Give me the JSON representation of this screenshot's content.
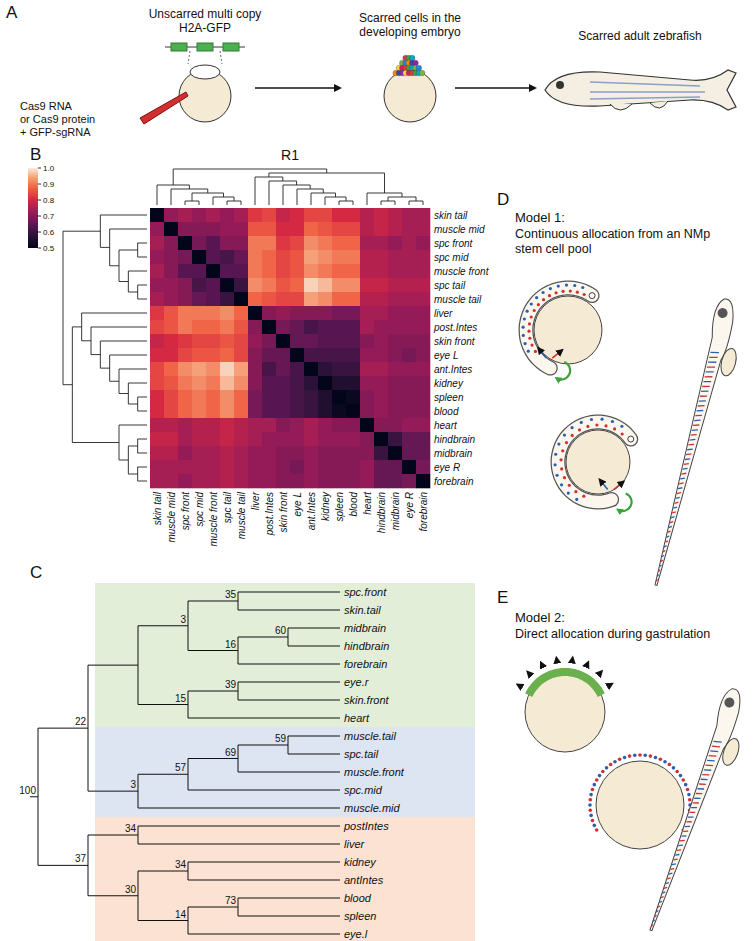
{
  "panel_labels": [
    "A",
    "B",
    "C",
    "D",
    "E"
  ],
  "panel_a": {
    "construct_label": [
      "Unscarred multi copy",
      "H2A-GFP"
    ],
    "injection_label": [
      "Cas9 RNA",
      "or Cas9 protein",
      "+ GFP-sgRNA"
    ],
    "embryo_label": [
      "Scarred cells in the",
      "developing embryo"
    ],
    "adult_label": "Scarred adult zebrafish"
  },
  "chart_data": {
    "type": "heatmap",
    "title": "R1",
    "rows": [
      "skin tail",
      "muscle mid",
      "spc front",
      "spc mid",
      "muscle front",
      "spc tail",
      "muscle tail",
      "liver",
      "post.Intes",
      "skin front",
      "eye L",
      "ant.Intes",
      "kidney",
      "spleen",
      "blood",
      "heart",
      "hindbrain",
      "midbrain",
      "eye R",
      "forebrain"
    ],
    "columns": [
      "skin tail",
      "muscle mid",
      "spc front",
      "spc mid",
      "muscle front",
      "spc tail",
      "muscle tail",
      "liver",
      "post.Intes",
      "skin front",
      "eye L",
      "ant.Intes",
      "kidney",
      "spleen",
      "blood",
      "heart",
      "hindbrain",
      "midbrain",
      "eye R",
      "forebrain"
    ],
    "values": [
      [
        0.5,
        0.72,
        0.74,
        0.72,
        0.74,
        0.72,
        0.74,
        0.82,
        0.84,
        0.78,
        0.8,
        0.84,
        0.84,
        0.8,
        0.8,
        0.76,
        0.78,
        0.76,
        0.74,
        0.74
      ],
      [
        0.72,
        0.5,
        0.7,
        0.7,
        0.7,
        0.72,
        0.72,
        0.86,
        0.86,
        0.8,
        0.8,
        0.88,
        0.86,
        0.84,
        0.84,
        0.76,
        0.78,
        0.76,
        0.74,
        0.74
      ],
      [
        0.74,
        0.7,
        0.5,
        0.68,
        0.64,
        0.7,
        0.7,
        0.9,
        0.9,
        0.82,
        0.84,
        0.92,
        0.9,
        0.88,
        0.88,
        0.74,
        0.74,
        0.72,
        0.74,
        0.72
      ],
      [
        0.72,
        0.7,
        0.68,
        0.5,
        0.64,
        0.62,
        0.66,
        0.9,
        0.88,
        0.84,
        0.86,
        0.94,
        0.92,
        0.9,
        0.9,
        0.76,
        0.76,
        0.74,
        0.74,
        0.74
      ],
      [
        0.74,
        0.7,
        0.64,
        0.64,
        0.5,
        0.64,
        0.64,
        0.9,
        0.88,
        0.84,
        0.86,
        0.92,
        0.9,
        0.88,
        0.88,
        0.76,
        0.76,
        0.74,
        0.74,
        0.74
      ],
      [
        0.72,
        0.72,
        0.7,
        0.62,
        0.64,
        0.5,
        0.6,
        0.92,
        0.9,
        0.86,
        0.88,
        0.98,
        0.96,
        0.92,
        0.92,
        0.78,
        0.78,
        0.76,
        0.76,
        0.76
      ],
      [
        0.74,
        0.72,
        0.7,
        0.66,
        0.64,
        0.6,
        0.5,
        0.88,
        0.86,
        0.84,
        0.84,
        0.94,
        0.92,
        0.88,
        0.88,
        0.76,
        0.76,
        0.74,
        0.74,
        0.74
      ],
      [
        0.82,
        0.86,
        0.9,
        0.9,
        0.9,
        0.92,
        0.88,
        0.5,
        0.7,
        0.72,
        0.7,
        0.7,
        0.7,
        0.68,
        0.68,
        0.74,
        0.74,
        0.72,
        0.72,
        0.72
      ],
      [
        0.84,
        0.86,
        0.9,
        0.88,
        0.88,
        0.9,
        0.86,
        0.7,
        0.5,
        0.68,
        0.66,
        0.62,
        0.64,
        0.64,
        0.64,
        0.74,
        0.72,
        0.72,
        0.72,
        0.72
      ],
      [
        0.78,
        0.8,
        0.82,
        0.84,
        0.84,
        0.86,
        0.84,
        0.72,
        0.68,
        0.5,
        0.66,
        0.66,
        0.64,
        0.64,
        0.64,
        0.7,
        0.72,
        0.7,
        0.7,
        0.7
      ],
      [
        0.8,
        0.8,
        0.84,
        0.86,
        0.86,
        0.88,
        0.84,
        0.7,
        0.66,
        0.66,
        0.5,
        0.62,
        0.62,
        0.62,
        0.62,
        0.72,
        0.72,
        0.7,
        0.68,
        0.7
      ],
      [
        0.84,
        0.88,
        0.92,
        0.94,
        0.92,
        0.98,
        0.94,
        0.7,
        0.62,
        0.66,
        0.62,
        0.5,
        0.58,
        0.6,
        0.6,
        0.74,
        0.74,
        0.72,
        0.72,
        0.72
      ],
      [
        0.84,
        0.86,
        0.9,
        0.92,
        0.9,
        0.96,
        0.92,
        0.7,
        0.64,
        0.64,
        0.62,
        0.58,
        0.5,
        0.56,
        0.56,
        0.72,
        0.72,
        0.7,
        0.7,
        0.7
      ],
      [
        0.8,
        0.84,
        0.88,
        0.9,
        0.88,
        0.92,
        0.88,
        0.68,
        0.64,
        0.64,
        0.62,
        0.6,
        0.56,
        0.5,
        0.52,
        0.7,
        0.72,
        0.7,
        0.7,
        0.7
      ],
      [
        0.8,
        0.84,
        0.88,
        0.9,
        0.88,
        0.92,
        0.88,
        0.68,
        0.64,
        0.64,
        0.62,
        0.6,
        0.56,
        0.52,
        0.5,
        0.7,
        0.72,
        0.7,
        0.7,
        0.7
      ],
      [
        0.76,
        0.76,
        0.74,
        0.76,
        0.76,
        0.78,
        0.76,
        0.74,
        0.74,
        0.7,
        0.72,
        0.74,
        0.72,
        0.7,
        0.7,
        0.5,
        0.7,
        0.7,
        0.72,
        0.72
      ],
      [
        0.78,
        0.78,
        0.74,
        0.76,
        0.76,
        0.78,
        0.76,
        0.74,
        0.72,
        0.72,
        0.72,
        0.74,
        0.72,
        0.72,
        0.72,
        0.7,
        0.5,
        0.6,
        0.66,
        0.66
      ],
      [
        0.76,
        0.76,
        0.72,
        0.74,
        0.74,
        0.76,
        0.74,
        0.72,
        0.72,
        0.7,
        0.7,
        0.72,
        0.7,
        0.7,
        0.7,
        0.7,
        0.6,
        0.5,
        0.66,
        0.66
      ],
      [
        0.74,
        0.74,
        0.74,
        0.74,
        0.74,
        0.76,
        0.74,
        0.72,
        0.72,
        0.7,
        0.68,
        0.72,
        0.7,
        0.7,
        0.7,
        0.72,
        0.66,
        0.66,
        0.5,
        0.68
      ],
      [
        0.74,
        0.74,
        0.72,
        0.74,
        0.74,
        0.76,
        0.74,
        0.72,
        0.72,
        0.7,
        0.7,
        0.72,
        0.7,
        0.7,
        0.7,
        0.72,
        0.66,
        0.66,
        0.68,
        0.5
      ]
    ],
    "color_range": [
      0.5,
      1
    ],
    "color_ticks": [
      0.5,
      0.6,
      0.7,
      0.8,
      0.9,
      {
        "value": 1,
        "label": "1.0"
      }
    ],
    "row_dendrogram": [
      [
        0,
        [
          1,
          [
            [
              2,
              3
            ],
            [
              4,
              [
                5,
                6
              ]
            ]
          ]
        ]
      ],
      [
        [
          7,
          [
            8,
            [
              9,
              [
                10,
                [
                  11,
                  [
                    12,
                    [
                      13,
                      14
                    ]
                  ]
                ]
              ]
            ]
          ]
        ],
        [
          15,
          [
            [
              16,
              17
            ],
            [
              18,
              19
            ]
          ]
        ]
      ]
    ],
    "column_dendrogram": [
      [
        0,
        [
          1,
          [
            [
              2,
              3
            ],
            [
              4,
              [
                5,
                6
              ]
            ]
          ]
        ]
      ],
      [
        [
          7,
          [
            8,
            [
              9,
              [
                10,
                [
                  11,
                  [
                    12,
                    [
                      13,
                      14
                    ]
                  ]
                ]
              ]
            ]
          ]
        ],
        [
          15,
          [
            [
              16,
              17
            ],
            [
              18,
              19
            ]
          ]
        ]
      ]
    ]
  },
  "tree": {
    "label": "100",
    "children": [
      {
        "label": "22",
        "children": [
          {
            "color": "#e2eed8",
            "children": [
              {
                "label": "3",
                "children": [
                  {
                    "label": "35",
                    "children": [
                      {
                        "label": "spc.front"
                      },
                      {
                        "label": "skin.tail"
                      }
                    ]
                  },
                  {
                    "label": "16",
                    "children": [
                      {
                        "label": "60",
                        "children": [
                          {
                            "label": "midbrain"
                          },
                          {
                            "label": "hindbrain"
                          }
                        ]
                      },
                      {
                        "label": "forebrain"
                      }
                    ]
                  }
                ]
              },
              {
                "label": "15",
                "children": [
                  {
                    "label": "39",
                    "children": [
                      {
                        "label": "eye.r"
                      },
                      {
                        "label": "skin.front"
                      }
                    ]
                  },
                  {
                    "label": "heart"
                  }
                ]
              }
            ]
          },
          {
            "label": "3",
            "color": "#dce5f1",
            "children": [
              {
                "label": "57",
                "children": [
                  {
                    "label": "69",
                    "children": [
                      {
                        "label": "59",
                        "children": [
                          {
                            "label": "muscle.tail"
                          },
                          {
                            "label": "spc.tail"
                          }
                        ]
                      },
                      {
                        "label": "muscle.front"
                      }
                    ]
                  },
                  {
                    "label": "spc.mid"
                  }
                ]
              },
              {
                "label": "muscle.mid"
              }
            ]
          }
        ]
      },
      {
        "label": "37",
        "color": "#fbe2d2",
        "children": [
          {
            "label": "34",
            "children": [
              {
                "label": "postIntes"
              },
              {
                "label": "liver"
              }
            ]
          },
          {
            "label": "30",
            "children": [
              {
                "label": "34",
                "children": [
                  {
                    "label": "kidney"
                  },
                  {
                    "label": "antIntes"
                  }
                ]
              },
              {
                "label": "14",
                "children": [
                  {
                    "label": "73",
                    "children": [
                      {
                        "label": "blood"
                      },
                      {
                        "label": "spleen"
                      }
                    ]
                  },
                  {
                    "label": "eye.l"
                  }
                ]
              }
            ]
          }
        ]
      }
    ]
  },
  "model_1": {
    "title": "Model 1:",
    "text": [
      "Continuous allocation from an NMp",
      "stem cell pool"
    ]
  },
  "model_2": {
    "title": "Model 2:",
    "text": [
      "Direct allocation during gastrulation"
    ]
  }
}
